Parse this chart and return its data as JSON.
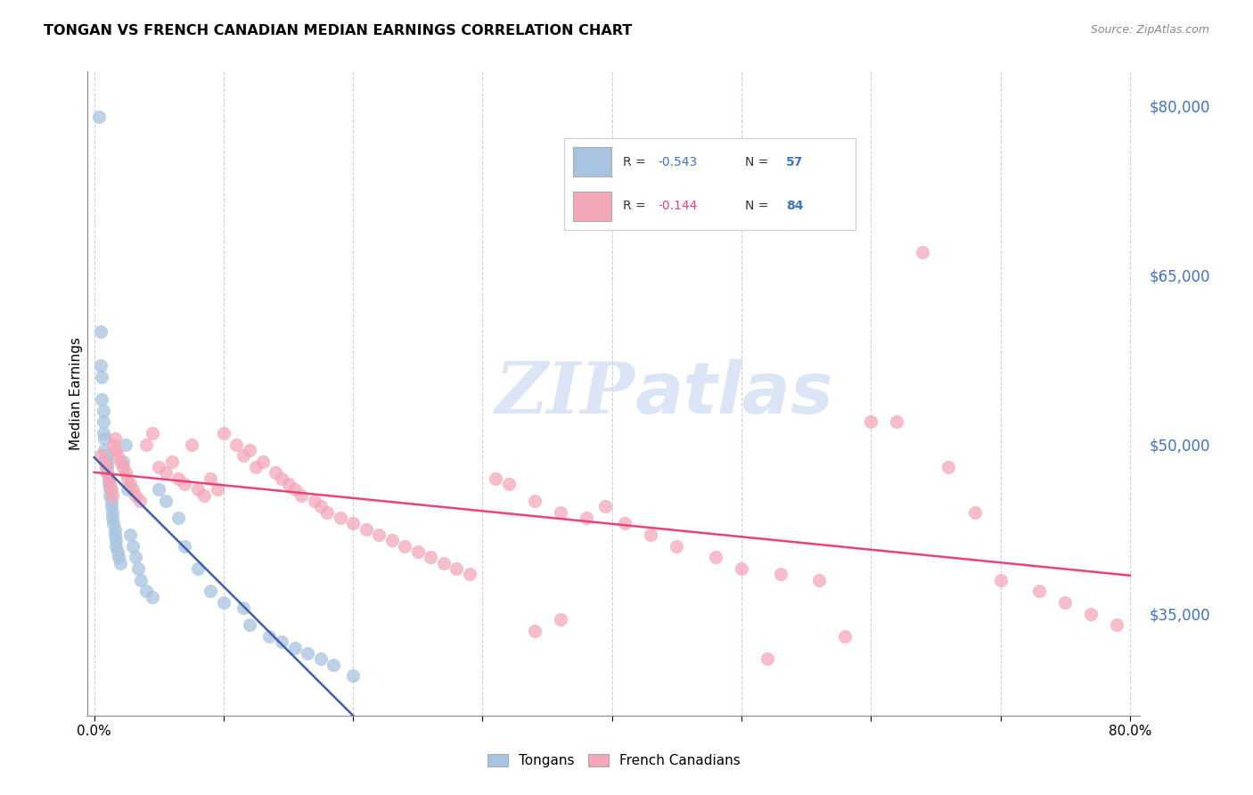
{
  "title": "TONGAN VS FRENCH CANADIAN MEDIAN EARNINGS CORRELATION CHART",
  "source": "Source: ZipAtlas.com",
  "ylabel": "Median Earnings",
  "xlim": [
    0.0,
    0.8
  ],
  "ylim": [
    26000,
    83000
  ],
  "yticks": [
    35000,
    50000,
    65000,
    80000
  ],
  "ytick_labels": [
    "$35,000",
    "$50,000",
    "$65,000",
    "$80,000"
  ],
  "xticks": [
    0.0,
    0.1,
    0.2,
    0.3,
    0.4,
    0.5,
    0.6,
    0.7,
    0.8
  ],
  "xtick_labels": [
    "0.0%",
    "",
    "",
    "",
    "",
    "",
    "",
    "",
    "80.0%"
  ],
  "legend_r_tongan": "-0.543",
  "legend_n_tongan": "57",
  "legend_r_french": "-0.144",
  "legend_n_french": "84",
  "tongan_color": "#a8c4e0",
  "french_color": "#f4a7b9",
  "tongan_line_color": "#3f5faa",
  "french_line_color": "#e8437a",
  "watermark1": "ZIP",
  "watermark2": "atlas",
  "watermark_color": "#c8d8f0",
  "background_color": "#ffffff",
  "grid_color": "#cccccc",
  "right_axis_color": "#4472c4",
  "tongan_x": [
    0.004,
    0.005,
    0.005,
    0.006,
    0.006,
    0.007,
    0.007,
    0.007,
    0.008,
    0.008,
    0.009,
    0.009,
    0.01,
    0.01,
    0.01,
    0.011,
    0.011,
    0.012,
    0.012,
    0.013,
    0.013,
    0.014,
    0.014,
    0.015,
    0.016,
    0.016,
    0.017,
    0.017,
    0.018,
    0.019,
    0.02,
    0.022,
    0.024,
    0.026,
    0.028,
    0.03,
    0.032,
    0.034,
    0.036,
    0.04,
    0.045,
    0.05,
    0.055,
    0.065,
    0.07,
    0.08,
    0.09,
    0.1,
    0.115,
    0.12,
    0.135,
    0.145,
    0.155,
    0.165,
    0.175,
    0.185,
    0.2
  ],
  "tongan_y": [
    79000,
    60000,
    57000,
    56000,
    54000,
    53000,
    52000,
    51000,
    50500,
    49500,
    49000,
    48500,
    48500,
    48000,
    47500,
    47000,
    46500,
    46000,
    45500,
    45000,
    44500,
    44000,
    43500,
    43000,
    42500,
    42000,
    41500,
    41000,
    40500,
    40000,
    39500,
    48500,
    50000,
    46000,
    42000,
    41000,
    40000,
    39000,
    38000,
    37000,
    36500,
    46000,
    45000,
    43500,
    41000,
    39000,
    37000,
    36000,
    35500,
    34000,
    33000,
    32500,
    32000,
    31500,
    31000,
    30500,
    29500
  ],
  "french_x": [
    0.005,
    0.008,
    0.009,
    0.01,
    0.011,
    0.012,
    0.013,
    0.014,
    0.015,
    0.016,
    0.017,
    0.018,
    0.02,
    0.022,
    0.024,
    0.026,
    0.028,
    0.03,
    0.032,
    0.035,
    0.04,
    0.045,
    0.05,
    0.055,
    0.06,
    0.065,
    0.07,
    0.075,
    0.08,
    0.085,
    0.09,
    0.095,
    0.1,
    0.11,
    0.115,
    0.12,
    0.125,
    0.13,
    0.14,
    0.145,
    0.15,
    0.155,
    0.16,
    0.17,
    0.175,
    0.18,
    0.19,
    0.2,
    0.21,
    0.22,
    0.23,
    0.24,
    0.25,
    0.26,
    0.27,
    0.28,
    0.29,
    0.31,
    0.32,
    0.34,
    0.36,
    0.38,
    0.395,
    0.41,
    0.43,
    0.45,
    0.48,
    0.5,
    0.53,
    0.56,
    0.6,
    0.62,
    0.64,
    0.66,
    0.68,
    0.7,
    0.73,
    0.75,
    0.77,
    0.79,
    0.34,
    0.36,
    0.52,
    0.58
  ],
  "french_y": [
    49000,
    48500,
    48000,
    47500,
    47000,
    46500,
    46000,
    45500,
    50000,
    50500,
    49500,
    49000,
    48500,
    48000,
    47500,
    47000,
    46500,
    46000,
    45500,
    45000,
    50000,
    51000,
    48000,
    47500,
    48500,
    47000,
    46500,
    50000,
    46000,
    45500,
    47000,
    46000,
    51000,
    50000,
    49000,
    49500,
    48000,
    48500,
    47500,
    47000,
    46500,
    46000,
    45500,
    45000,
    44500,
    44000,
    43500,
    43000,
    42500,
    42000,
    41500,
    41000,
    40500,
    40000,
    39500,
    39000,
    38500,
    47000,
    46500,
    45000,
    44000,
    43500,
    44500,
    43000,
    42000,
    41000,
    40000,
    39000,
    38500,
    38000,
    52000,
    52000,
    67000,
    48000,
    44000,
    38000,
    37000,
    36000,
    35000,
    34000,
    33500,
    34500,
    31000,
    33000
  ]
}
